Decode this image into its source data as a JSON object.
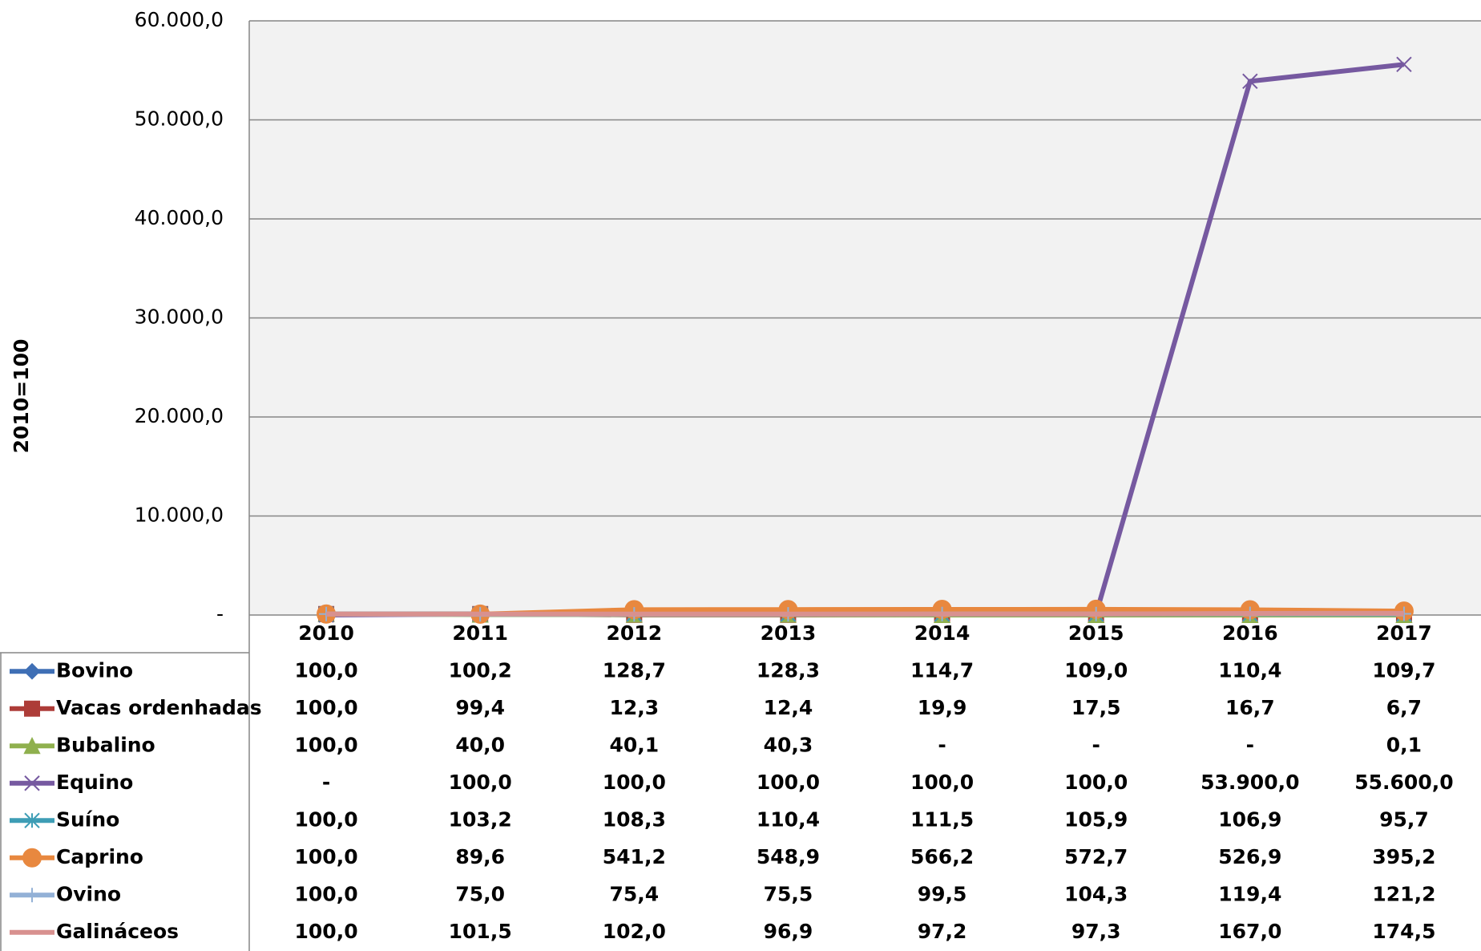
{
  "chart_data": {
    "type": "line",
    "y_axis_label": "2010=100",
    "categories": [
      "2010",
      "2011",
      "2012",
      "2013",
      "2014",
      "2015",
      "2016",
      "2017"
    ],
    "ylim": [
      0,
      60000
    ],
    "yticks": [
      {
        "value": 0,
        "label": "-"
      },
      {
        "value": 10000,
        "label": "10.000,0"
      },
      {
        "value": 20000,
        "label": "20.000,0"
      },
      {
        "value": 30000,
        "label": "30.000,0"
      },
      {
        "value": 40000,
        "label": "40.000,0"
      },
      {
        "value": 50000,
        "label": "50.000,0"
      },
      {
        "value": 60000,
        "label": "60.000,0"
      }
    ],
    "grid": true,
    "series": [
      {
        "name": "Bovino",
        "color": "#3f6fb5",
        "marker": "diamond",
        "values": [
          100.0,
          100.2,
          128.7,
          128.3,
          114.7,
          109.0,
          110.4,
          109.7
        ],
        "value_labels": [
          "100,0",
          "100,2",
          "128,7",
          "128,3",
          "114,7",
          "109,0",
          "110,4",
          "109,7"
        ]
      },
      {
        "name": "Vacas ordenhadas",
        "color": "#ad3c38",
        "marker": "square",
        "values": [
          100.0,
          99.4,
          12.3,
          12.4,
          19.9,
          17.5,
          16.7,
          6.7
        ],
        "value_labels": [
          "100,0",
          "99,4",
          "12,3",
          "12,4",
          "19,9",
          "17,5",
          "16,7",
          "6,7"
        ]
      },
      {
        "name": "Bubalino",
        "color": "#8fb04e",
        "marker": "triangle",
        "values": [
          100.0,
          40.0,
          40.1,
          40.3,
          0,
          0,
          0,
          0.1
        ],
        "value_labels": [
          "100,0",
          "40,0",
          "40,1",
          "40,3",
          "-",
          "-",
          "-",
          "0,1"
        ]
      },
      {
        "name": "Equino",
        "color": "#7659a0",
        "marker": "x",
        "values": [
          0,
          100.0,
          100.0,
          100.0,
          100.0,
          100.0,
          53900.0,
          55600.0
        ],
        "value_labels": [
          "-",
          "100,0",
          "100,0",
          "100,0",
          "100,0",
          "100,0",
          "53.900,0",
          "55.600,0"
        ]
      },
      {
        "name": "Suíno",
        "color": "#3e9db5",
        "marker": "asterisk",
        "values": [
          100.0,
          103.2,
          108.3,
          110.4,
          111.5,
          105.9,
          106.9,
          95.7
        ],
        "value_labels": [
          "100,0",
          "103,2",
          "108,3",
          "110,4",
          "111,5",
          "105,9",
          "106,9",
          "95,7"
        ]
      },
      {
        "name": "Caprino",
        "color": "#e8883f",
        "marker": "circle",
        "values": [
          100.0,
          89.6,
          541.2,
          548.9,
          566.2,
          572.7,
          526.9,
          395.2
        ],
        "value_labels": [
          "100,0",
          "89,6",
          "541,2",
          "548,9",
          "566,2",
          "572,7",
          "526,9",
          "395,2"
        ]
      },
      {
        "name": "Ovino",
        "color": "#93b1d6",
        "marker": "plus",
        "values": [
          100.0,
          75.0,
          75.4,
          75.5,
          99.5,
          104.3,
          119.4,
          121.2
        ],
        "value_labels": [
          "100,0",
          "75,0",
          "75,4",
          "75,5",
          "99,5",
          "104,3",
          "119,4",
          "121,2"
        ]
      },
      {
        "name": "Galináceos",
        "color": "#d8918f",
        "marker": "none",
        "values": [
          100.0,
          101.5,
          102.0,
          96.9,
          97.2,
          97.3,
          167.0,
          174.5
        ],
        "value_labels": [
          "100,0",
          "101,5",
          "102,0",
          "96,9",
          "97,2",
          "97,3",
          "167,0",
          "174,5"
        ]
      }
    ]
  }
}
